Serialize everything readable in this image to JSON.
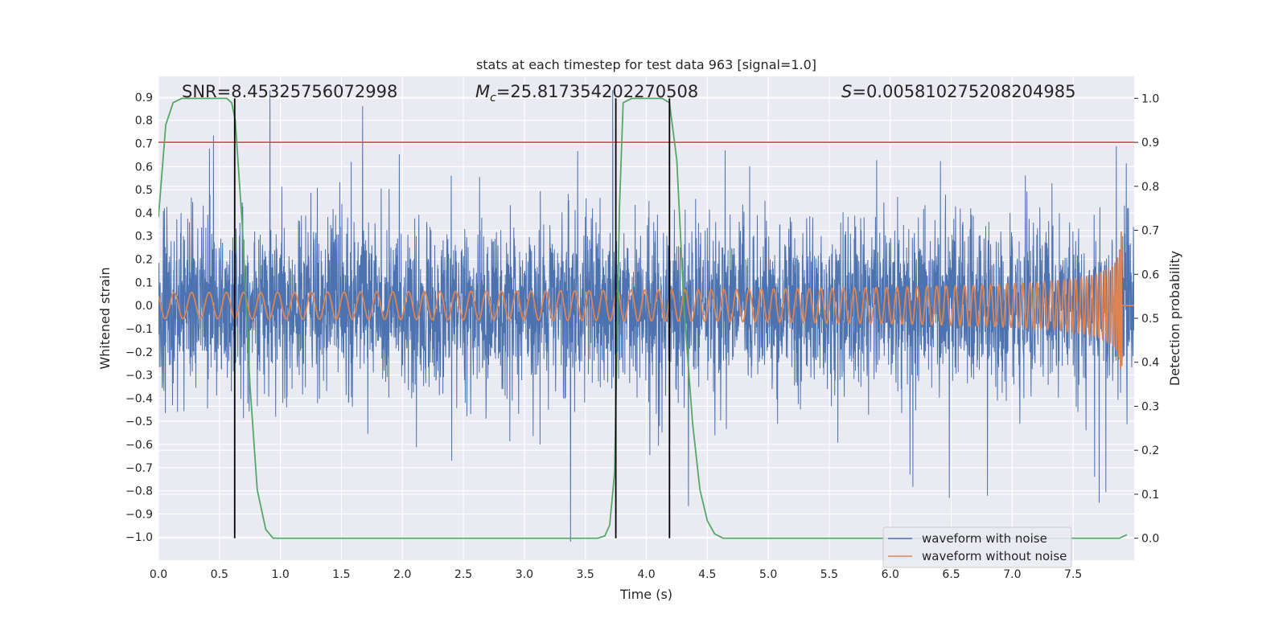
{
  "chart_data": {
    "type": "line",
    "title": "stats at each timestep for test data 963 [signal=1.0]",
    "xlabel": "Time (s)",
    "ylabel_left": "Whitened strain",
    "ylabel_right": "Detection probability",
    "xlim": [
      0.0,
      8.0
    ],
    "ylim_left": [
      -1.1,
      0.99
    ],
    "ylim_right": [
      -0.05,
      1.05
    ],
    "x_ticks": [
      "0.0",
      "0.5",
      "1.0",
      "1.5",
      "2.0",
      "2.5",
      "3.0",
      "3.5",
      "4.0",
      "4.5",
      "5.0",
      "5.5",
      "6.0",
      "6.5",
      "7.0",
      "7.5"
    ],
    "x_tick_values": [
      0.0,
      0.5,
      1.0,
      1.5,
      2.0,
      2.5,
      3.0,
      3.5,
      4.0,
      4.5,
      5.0,
      5.5,
      6.0,
      6.5,
      7.0,
      7.5
    ],
    "y_left_ticks": [
      "0.9",
      "0.8",
      "0.7",
      "0.6",
      "0.5",
      "0.4",
      "0.3",
      "0.2",
      "0.1",
      "0.0",
      "−0.1",
      "−0.2",
      "−0.3",
      "−0.4",
      "−0.5",
      "−0.6",
      "−0.7",
      "−0.8",
      "−0.9",
      "−1.0"
    ],
    "y_left_tick_values": [
      0.9,
      0.8,
      0.7,
      0.6,
      0.5,
      0.4,
      0.3,
      0.2,
      0.1,
      0.0,
      -0.1,
      -0.2,
      -0.3,
      -0.4,
      -0.5,
      -0.6,
      -0.7,
      -0.8,
      -0.9,
      -1.0
    ],
    "y_right_ticks": [
      "1.0",
      "0.9",
      "0.8",
      "0.7",
      "0.6",
      "0.5",
      "0.4",
      "0.3",
      "0.2",
      "0.1",
      "0.0"
    ],
    "y_right_tick_values": [
      1.0,
      0.9,
      0.8,
      0.7,
      0.6,
      0.5,
      0.4,
      0.3,
      0.2,
      0.1,
      0.0
    ],
    "annotations": {
      "snr": "SNR=8.45325756072998",
      "mc_symbol": "M",
      "mc_sub": "c",
      "mc_value": "=25.817354202270508",
      "s_symbol": "S",
      "s_value": "=0.005810275208204985"
    },
    "threshold_line": {
      "y_right": 0.9,
      "color": "#c44e52"
    },
    "vertical_lines": [
      0.625,
      3.75,
      4.19
    ],
    "series": [
      {
        "name": "waveform with noise",
        "color": "#4c72b0",
        "axis": "left",
        "sample_rate": 512,
        "approx_std": 0.18
      },
      {
        "name": "waveform without noise",
        "color": "#dd8452",
        "axis": "left",
        "merger_time": 7.9,
        "peak_amplitude": 0.41
      },
      {
        "color": "#55a868",
        "axis": "right",
        "x": [
          0.0,
          0.06,
          0.12,
          0.19,
          0.25,
          0.31,
          0.38,
          0.44,
          0.5,
          0.56,
          0.6,
          0.63,
          0.69,
          0.75,
          0.81,
          0.88,
          0.94,
          1.0,
          1.5,
          2.0,
          2.5,
          3.0,
          3.5,
          3.6,
          3.66,
          3.7,
          3.74,
          3.78,
          3.81,
          3.88,
          3.94,
          4.0,
          4.06,
          4.13,
          4.19,
          4.25,
          4.31,
          4.38,
          4.44,
          4.5,
          4.56,
          4.63,
          4.69,
          4.75,
          5.0,
          5.5,
          6.0,
          6.5,
          7.0,
          7.5,
          7.8,
          7.88,
          7.94
        ],
        "y": [
          0.73,
          0.94,
          0.99,
          1.0,
          1.0,
          1.0,
          1.0,
          1.0,
          1.0,
          1.0,
          0.99,
          0.95,
          0.7,
          0.35,
          0.11,
          0.02,
          0.0,
          0.0,
          0.0,
          0.0,
          0.0,
          0.0,
          0.0,
          0.0,
          0.005,
          0.03,
          0.15,
          0.75,
          0.99,
          1.0,
          1.0,
          1.0,
          1.0,
          1.0,
          0.99,
          0.86,
          0.52,
          0.26,
          0.11,
          0.04,
          0.01,
          0.0,
          0.0,
          0.0,
          0.0,
          0.0,
          0.0,
          0.0,
          0.0,
          0.0,
          0.0,
          0.0,
          0.008
        ]
      }
    ],
    "legend_position": "lower-right",
    "grid": true
  }
}
